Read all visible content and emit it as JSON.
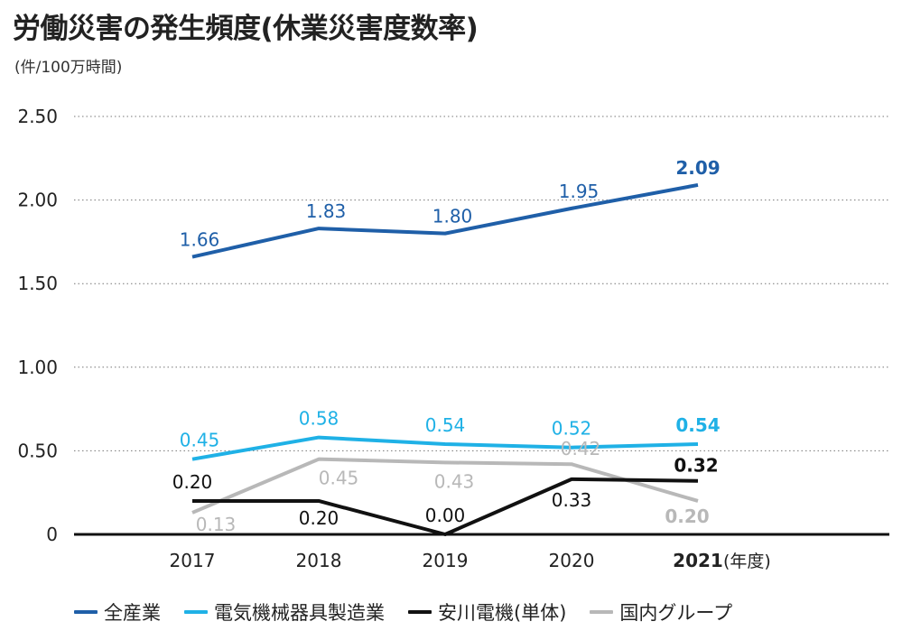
{
  "header": {
    "title": "労働災害の発生頻度(休業災害度数率)",
    "unit": "(件/100万時間)"
  },
  "x_suffix": "(年度)",
  "chart_data": {
    "type": "line",
    "title": "労働災害の発生頻度(休業災害度数率)",
    "ylabel": "(件/100万時間)",
    "xlabel": "(年度)",
    "categories": [
      "2017",
      "2018",
      "2019",
      "2020",
      "2021"
    ],
    "highlight_category": "2021",
    "ylim": [
      0,
      2.5
    ],
    "yticks": [
      0,
      0.5,
      1.0,
      1.5,
      2.0,
      2.5
    ],
    "ytick_labels": [
      "0",
      "0.50",
      "1.00",
      "1.50",
      "2.00",
      "2.50"
    ],
    "grid": "horizontal-dotted",
    "legend_position": "bottom",
    "series": [
      {
        "name": "全産業",
        "color": "#1f5fa8",
        "values": [
          1.66,
          1.83,
          1.8,
          1.95,
          2.09
        ],
        "labels": [
          "1.66",
          "1.83",
          "1.80",
          "1.95",
          "2.09"
        ]
      },
      {
        "name": "電気機械器具製造業",
        "color": "#1fb1e6",
        "values": [
          0.45,
          0.58,
          0.54,
          0.52,
          0.54
        ],
        "labels": [
          "0.45",
          "0.58",
          "0.54",
          "0.52",
          "0.54"
        ]
      },
      {
        "name": "安川電機(単体)",
        "color": "#111111",
        "values": [
          0.2,
          0.2,
          0.0,
          0.33,
          0.32
        ],
        "labels": [
          "0.20",
          "0.20",
          "0.00",
          "0.33",
          "0.32"
        ]
      },
      {
        "name": "国内グループ",
        "color": "#b8b8b8",
        "values": [
          0.13,
          0.45,
          0.43,
          0.42,
          0.2
        ],
        "labels": [
          "0.13",
          "0.45",
          "0.43",
          "0.42",
          "0.20"
        ]
      }
    ]
  }
}
